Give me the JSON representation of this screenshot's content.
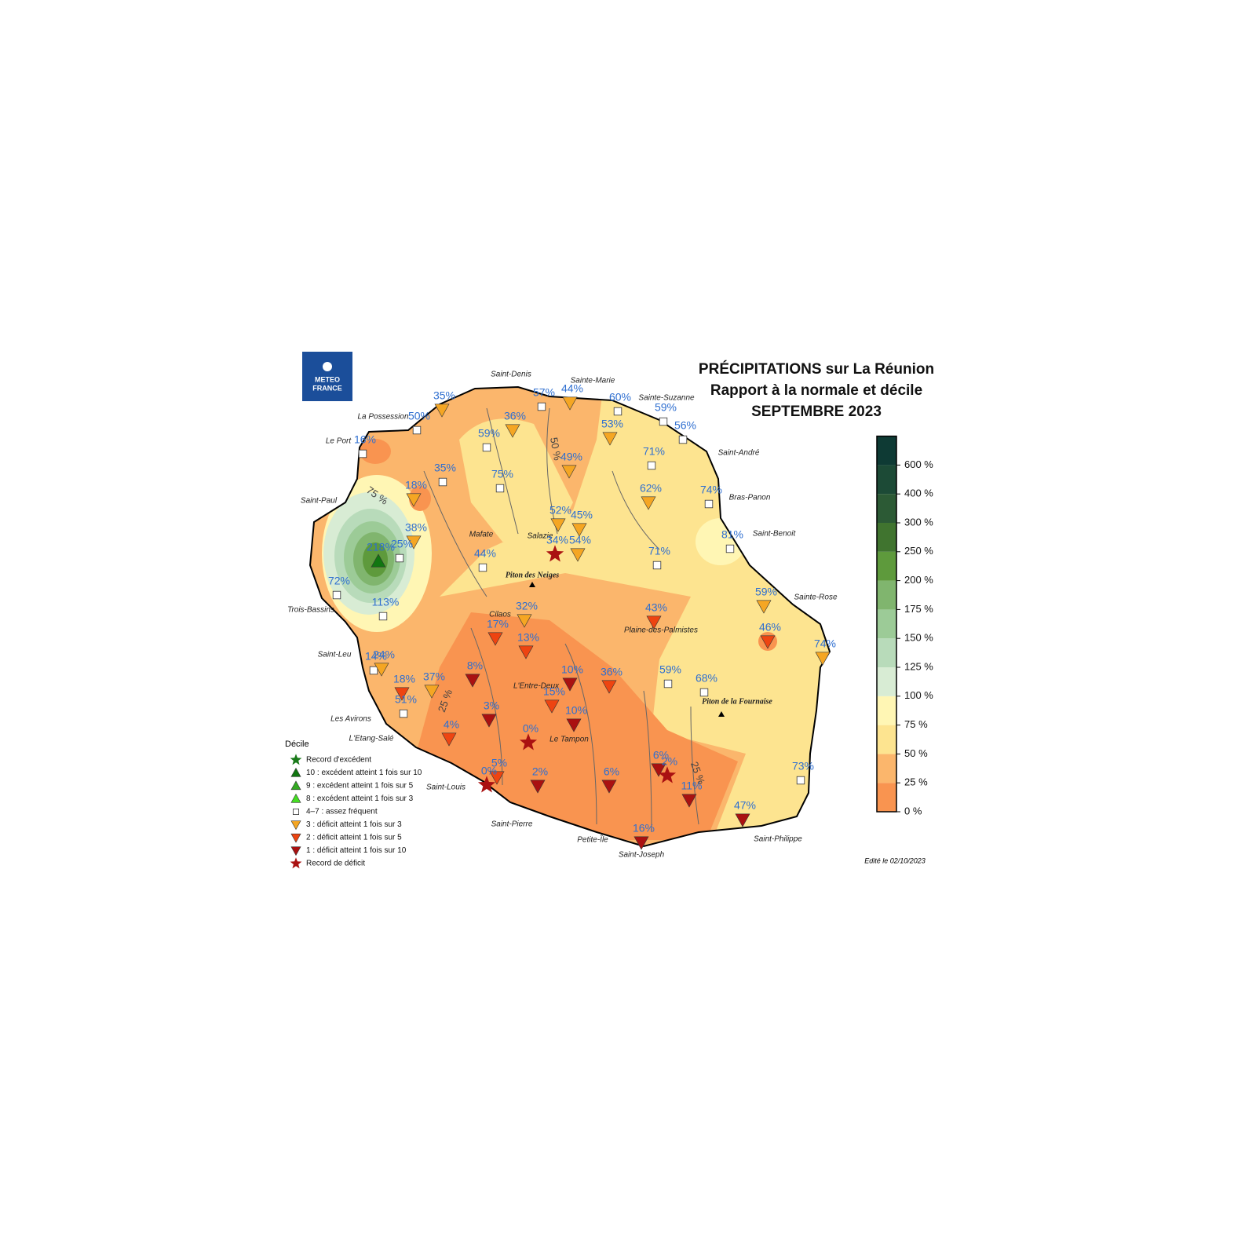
{
  "logo": {
    "line1": "METEO",
    "line2": "FRANCE"
  },
  "header": {
    "title": "PRÉCIPITATIONS sur La Réunion",
    "subtitle": "Rapport à la normale et décile",
    "period": "SEPTEMBRE 2023"
  },
  "places": [
    "Saint-Denis",
    "Sainte-Marie",
    "Sainte-Suzanne",
    "La Possession",
    "Le Port",
    "Saint-André",
    "Bras-Panon",
    "Saint-Paul",
    "Saint-Benoit",
    "Mafate",
    "Salazie",
    "Piton des Neiges",
    "Trois-Bassins",
    "Sainte-Rose",
    "Cilaos",
    "Plaine-des-Palmistes",
    "Saint-Leu",
    "L'Entre-Deux",
    "Piton de la Fournaise",
    "Les Avirons",
    "L'Etang-Salé",
    "Le Tampon",
    "Saint-Louis",
    "Saint-Pierre",
    "Petite-Île",
    "Saint-Joseph",
    "Saint-Philippe"
  ],
  "contours": [
    "75 %",
    "50 %",
    "25 %",
    "25 %"
  ],
  "stations": [
    {
      "label": "35%",
      "decile": "3"
    },
    {
      "label": "57%",
      "decile": "4-7"
    },
    {
      "label": "44%",
      "decile": "3"
    },
    {
      "label": "60%",
      "decile": "4-7"
    },
    {
      "label": "59%",
      "decile": "4-7"
    },
    {
      "label": "56%",
      "decile": "4-7"
    },
    {
      "label": "36%",
      "decile": "3"
    },
    {
      "label": "50%",
      "decile": "4-7"
    },
    {
      "label": "16%",
      "decile": "4-7"
    },
    {
      "label": "59%",
      "decile": "4-7"
    },
    {
      "label": "49%",
      "decile": "3"
    },
    {
      "label": "53%",
      "decile": "3"
    },
    {
      "label": "71%",
      "decile": "4-7"
    },
    {
      "label": "35%",
      "decile": "4-7"
    },
    {
      "label": "75%",
      "decile": "4-7"
    },
    {
      "label": "18%",
      "decile": "3"
    },
    {
      "label": "62%",
      "decile": "3"
    },
    {
      "label": "74%",
      "decile": "4-7"
    },
    {
      "label": "52%",
      "decile": "3"
    },
    {
      "label": "45%",
      "decile": "3"
    },
    {
      "label": "38%",
      "decile": "3"
    },
    {
      "label": "81%",
      "decile": "4-7"
    },
    {
      "label": "218%",
      "decile": "10"
    },
    {
      "label": "25%",
      "decile": "4-7"
    },
    {
      "label": "34%",
      "decile": "record-deficit"
    },
    {
      "label": "54%",
      "decile": "3"
    },
    {
      "label": "44%",
      "decile": "4-7"
    },
    {
      "label": "71%",
      "decile": "4-7"
    },
    {
      "label": "72%",
      "decile": "4-7"
    },
    {
      "label": "113%",
      "decile": "4-7"
    },
    {
      "label": "32%",
      "decile": "3"
    },
    {
      "label": "43%",
      "decile": "2"
    },
    {
      "label": "59%",
      "decile": "3"
    },
    {
      "label": "17%",
      "decile": "2"
    },
    {
      "label": "13%",
      "decile": "2"
    },
    {
      "label": "46%",
      "decile": "2"
    },
    {
      "label": "74%",
      "decile": "3"
    },
    {
      "label": "14%",
      "decile": "4-7"
    },
    {
      "label": "24%",
      "decile": "3"
    },
    {
      "label": "8%",
      "decile": "1"
    },
    {
      "label": "10%",
      "decile": "1"
    },
    {
      "label": "36%",
      "decile": "2"
    },
    {
      "label": "18%",
      "decile": "2"
    },
    {
      "label": "37%",
      "decile": "3"
    },
    {
      "label": "59%",
      "decile": "4-7"
    },
    {
      "label": "68%",
      "decile": "4-7"
    },
    {
      "label": "15%",
      "decile": "2"
    },
    {
      "label": "51%",
      "decile": "4-7"
    },
    {
      "label": "3%",
      "decile": "1"
    },
    {
      "label": "10%",
      "decile": "1"
    },
    {
      "label": "4%",
      "decile": "2"
    },
    {
      "label": "0%",
      "decile": "record-deficit"
    },
    {
      "label": "73%",
      "decile": "4-7"
    },
    {
      "label": "6%",
      "decile": "1"
    },
    {
      "label": "5%",
      "decile": "2"
    },
    {
      "label": "0%",
      "decile": "record-deficit"
    },
    {
      "label": "2%",
      "decile": "1"
    },
    {
      "label": "6%",
      "decile": "1"
    },
    {
      "label": "2%",
      "decile": "record-deficit"
    },
    {
      "label": "11%",
      "decile": "1"
    },
    {
      "label": "47%",
      "decile": "1"
    },
    {
      "label": "16%",
      "decile": "1"
    }
  ],
  "legend": {
    "title": "Décile",
    "entries": [
      {
        "label": "Record d'excédent",
        "decile": "record-excess"
      },
      {
        "label": "10 : excédent atteint 1 fois sur 10",
        "decile": "10"
      },
      {
        "label": "9 : excédent atteint 1 fois sur 5",
        "decile": "9"
      },
      {
        "label": "8 : excédent atteint 1 fois sur 3",
        "decile": "8"
      },
      {
        "label": "4–7 : assez fréquent",
        "decile": "4-7"
      },
      {
        "label": "3 : déficit atteint 1 fois sur 3",
        "decile": "3"
      },
      {
        "label": "2 : déficit atteint 1 fois sur 5",
        "decile": "2"
      },
      {
        "label": "1 : déficit  atteint 1 fois sur 10",
        "decile": "1"
      },
      {
        "label": "Record de déficit",
        "decile": "record-deficit"
      }
    ]
  },
  "colorbar": {
    "labels": [
      "0 %",
      "25 %",
      "50 %",
      "75 %",
      "100 %",
      "125 %",
      "150 %",
      "175 %",
      "200 %",
      "250 %",
      "300 %",
      "400 %",
      "600 %"
    ],
    "colors": [
      "#f99450",
      "#fbb66c",
      "#fde490",
      "#fff6b4",
      "#d8ecd4",
      "#b8dbba",
      "#9ccb97",
      "#80b56e",
      "#5e9a3c",
      "#40742f",
      "#2c5a35",
      "#1c4a36",
      "#0e3a34"
    ]
  },
  "footer": {
    "edited": "Edité le 02/10/2023"
  }
}
